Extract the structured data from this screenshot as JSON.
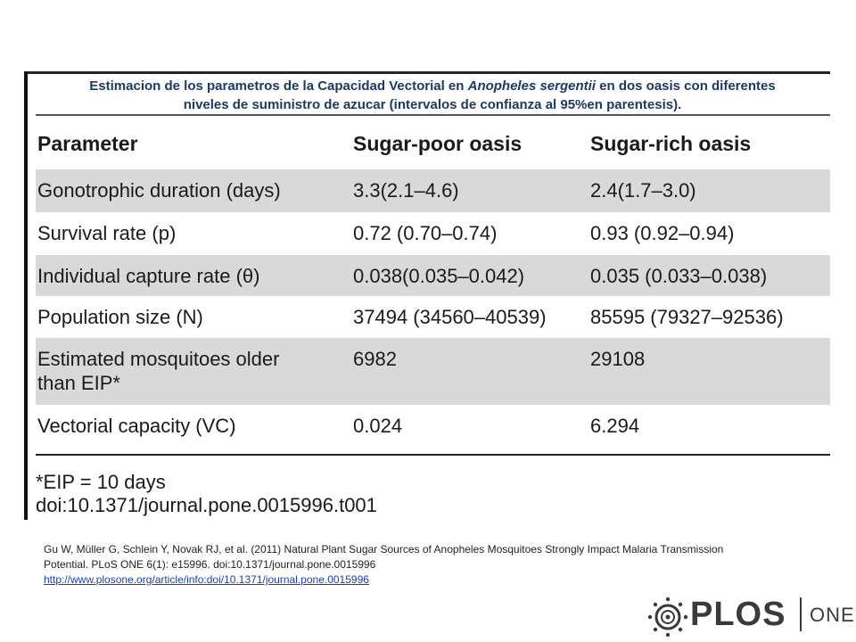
{
  "caption": {
    "before_italic": "Estimacion de los parametros de la Capacidad Vectorial en ",
    "italic": "Anopheles sergentii",
    "after_italic": " en dos oasis con diferentes",
    "line2": "niveles de suministro de azucar (intervalos de confianza al 95%en parentesis)."
  },
  "table": {
    "headers": [
      "Parameter",
      "Sugar-poor oasis",
      "Sugar-rich oasis"
    ],
    "rows": [
      {
        "parameter": "Gonotrophic duration (days)",
        "poor": "3.3(2.1–4.6)",
        "rich": "2.4(1.7–3.0)"
      },
      {
        "parameter": "Survival rate (p)",
        "poor": "0.72 (0.70–0.74)",
        "rich": "0.93 (0.92–0.94)"
      },
      {
        "parameter": "Individual capture rate (θ)",
        "poor": "0.038(0.035–0.042)",
        "rich": "0.035 (0.033–0.038)"
      },
      {
        "parameter": "Population size (N)",
        "poor": "37494 (34560–40539)",
        "rich": "85595 (79327–92536)"
      },
      {
        "parameter_line1": "Estimated mosquitoes older",
        "parameter_line2": "than EIP*",
        "poor": "6982",
        "rich": "29108"
      },
      {
        "parameter": "Vectorial capacity (VC)",
        "poor": "0.024",
        "rich": "6.294"
      }
    ]
  },
  "footnote": {
    "eip": "*EIP = 10 days",
    "doi": "doi:10.1371/journal.pone.0015996.t001"
  },
  "citation": {
    "line1": "Gu W, Müller G, Schlein Y, Novak RJ, et al. (2011)  Natural Plant Sugar Sources of Anopheles Mosquitoes Strongly Impact Malaria Transmission",
    "line2": "Potential. PLoS ONE 6(1): e15996.  doi:10.1371/journal.pone.0015996",
    "link": "http://www.plosone.org/article/info:doi/10.1371/journal.pone.0015996"
  },
  "logo": {
    "brand": "PLOS",
    "suffix": "ONE"
  }
}
